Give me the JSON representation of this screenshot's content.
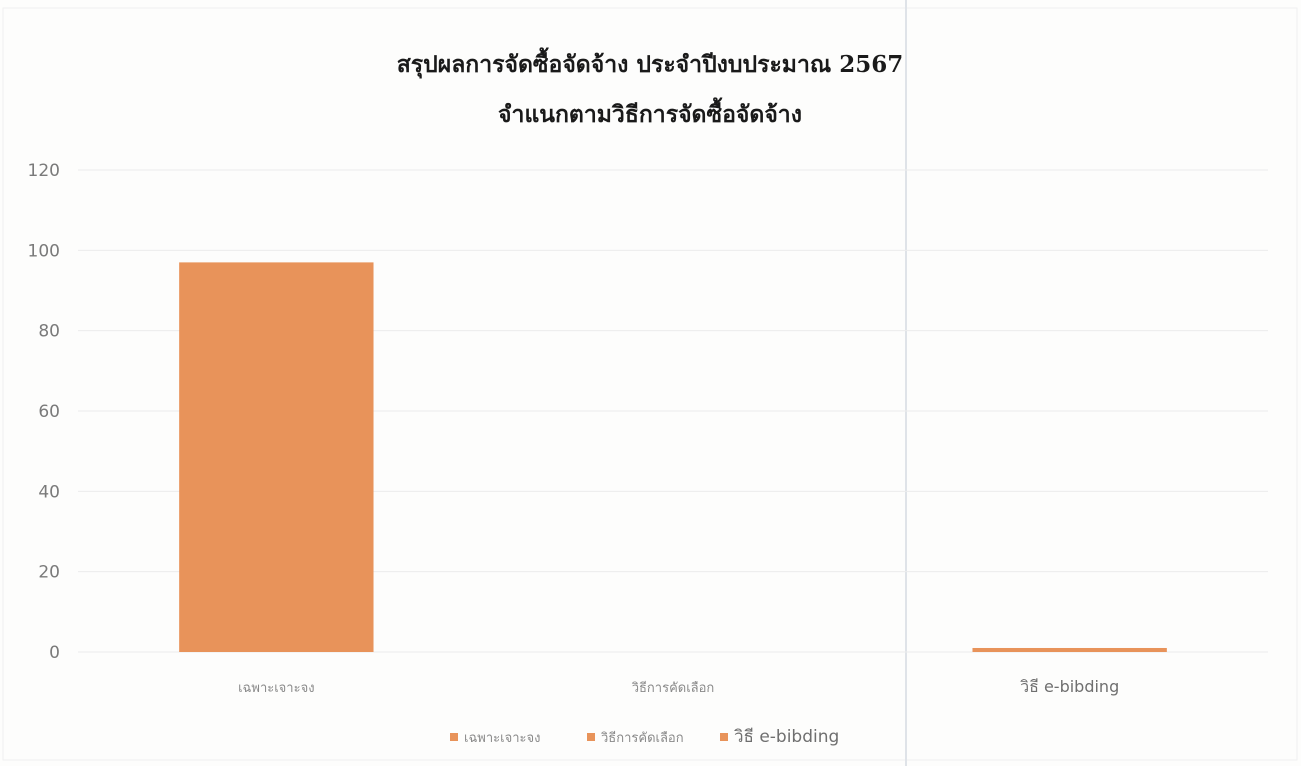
{
  "chart_data": {
    "type": "bar",
    "title": "สรุปผลการจัดซื้อจัดจ้าง ประจำปีงบประมาณ 2567",
    "subtitle": "จำแนกตามวิธีการจัดซื้อจัดจ้าง",
    "xlabel": "",
    "ylabel": "",
    "categories": [
      "เฉพาะเจาะจง",
      "วิธีการคัดเลือก",
      "วิธี e-bibding"
    ],
    "values": [
      97,
      0,
      1
    ],
    "ylim": [
      0,
      120
    ],
    "yticks": [
      0,
      20,
      40,
      60,
      80,
      100,
      120
    ],
    "grid": true,
    "legend_position": "bottom",
    "legend": [
      "เฉพาะเจาะจง",
      "วิธีการคัดเลือก",
      "วิธี e-bibding"
    ],
    "bar_color": "#e8935a"
  }
}
